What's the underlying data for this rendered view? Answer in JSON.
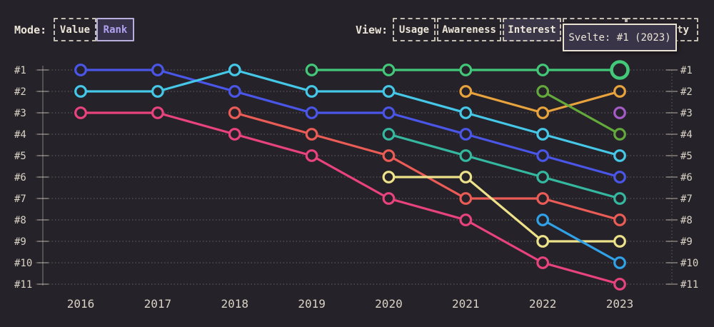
{
  "colors": {
    "background": "#262229",
    "text_cream": "#ece6d9",
    "accent_selected_rank": "#b2a0f0",
    "tooltip_background": "#393447",
    "tooltip_border": "#e9e2d2",
    "grid": "#cfc8ba"
  },
  "controls": {
    "mode_label": "Mode:",
    "mode_buttons": [
      {
        "label": "Value",
        "selected": false
      },
      {
        "label": "Rank",
        "selected": true
      }
    ],
    "view_label": "View:",
    "view_buttons": [
      {
        "label": "Usage",
        "selected": false
      },
      {
        "label": "Awareness",
        "selected": false
      },
      {
        "label": "Interest",
        "selected": true
      },
      {
        "label": "",
        "selected": false
      },
      {
        "label": "ty",
        "selected": false
      }
    ]
  },
  "tooltip": {
    "text": "Svelte: #1 (2023)"
  },
  "chart_data": {
    "type": "line",
    "subtype": "bump-rank-chart",
    "x": [
      2016,
      2017,
      2018,
      2019,
      2020,
      2021,
      2022,
      2023
    ],
    "y_ticks": [
      "#1",
      "#2",
      "#3",
      "#4",
      "#5",
      "#6",
      "#7",
      "#8",
      "#9",
      "#10",
      "#11"
    ],
    "y_axis_sides": "both",
    "grid": "dotted-horizontal",
    "legend": "none (series identified on hover; tooltip shows Svelte)",
    "ylim_ranks": [
      1,
      11
    ],
    "series": [
      {
        "name": "series-indigo",
        "color": "#4a56e8",
        "ranks": [
          1,
          1,
          2,
          3,
          3,
          4,
          5,
          6
        ]
      },
      {
        "name": "series-cyan",
        "color": "#45c8e8",
        "ranks": [
          2,
          2,
          1,
          2,
          2,
          3,
          4,
          5
        ]
      },
      {
        "name": "series-pink",
        "color": "#e8437c",
        "ranks": [
          3,
          3,
          4,
          5,
          7,
          8,
          10,
          11
        ]
      },
      {
        "name": "series-red",
        "color": "#ea5c55",
        "ranks": [
          null,
          null,
          3,
          4,
          5,
          7,
          7,
          8
        ]
      },
      {
        "name": "Svelte",
        "color": "#42c878",
        "ranks": [
          null,
          null,
          null,
          1,
          1,
          1,
          1,
          1
        ],
        "highlight_last": true
      },
      {
        "name": "series-teal",
        "color": "#34b8a0",
        "ranks": [
          null,
          null,
          null,
          null,
          4,
          5,
          6,
          7
        ]
      },
      {
        "name": "series-yellow",
        "color": "#ede28a",
        "ranks": [
          null,
          null,
          null,
          null,
          6,
          6,
          9,
          9
        ]
      },
      {
        "name": "series-orange",
        "color": "#e8a33d",
        "ranks": [
          null,
          null,
          null,
          null,
          null,
          2,
          3,
          2
        ]
      },
      {
        "name": "series-olive",
        "color": "#63a93c",
        "ranks": [
          null,
          null,
          null,
          null,
          null,
          null,
          2,
          4
        ]
      },
      {
        "name": "series-skyblue",
        "color": "#30a2e8",
        "ranks": [
          null,
          null,
          null,
          null,
          null,
          null,
          8,
          10
        ]
      },
      {
        "name": "series-purple",
        "color": "#a55cc8",
        "ranks": [
          null,
          null,
          null,
          null,
          null,
          null,
          null,
          3
        ]
      }
    ],
    "highlighted_point": {
      "series": "Svelte",
      "year": 2023,
      "rank": 1
    }
  }
}
